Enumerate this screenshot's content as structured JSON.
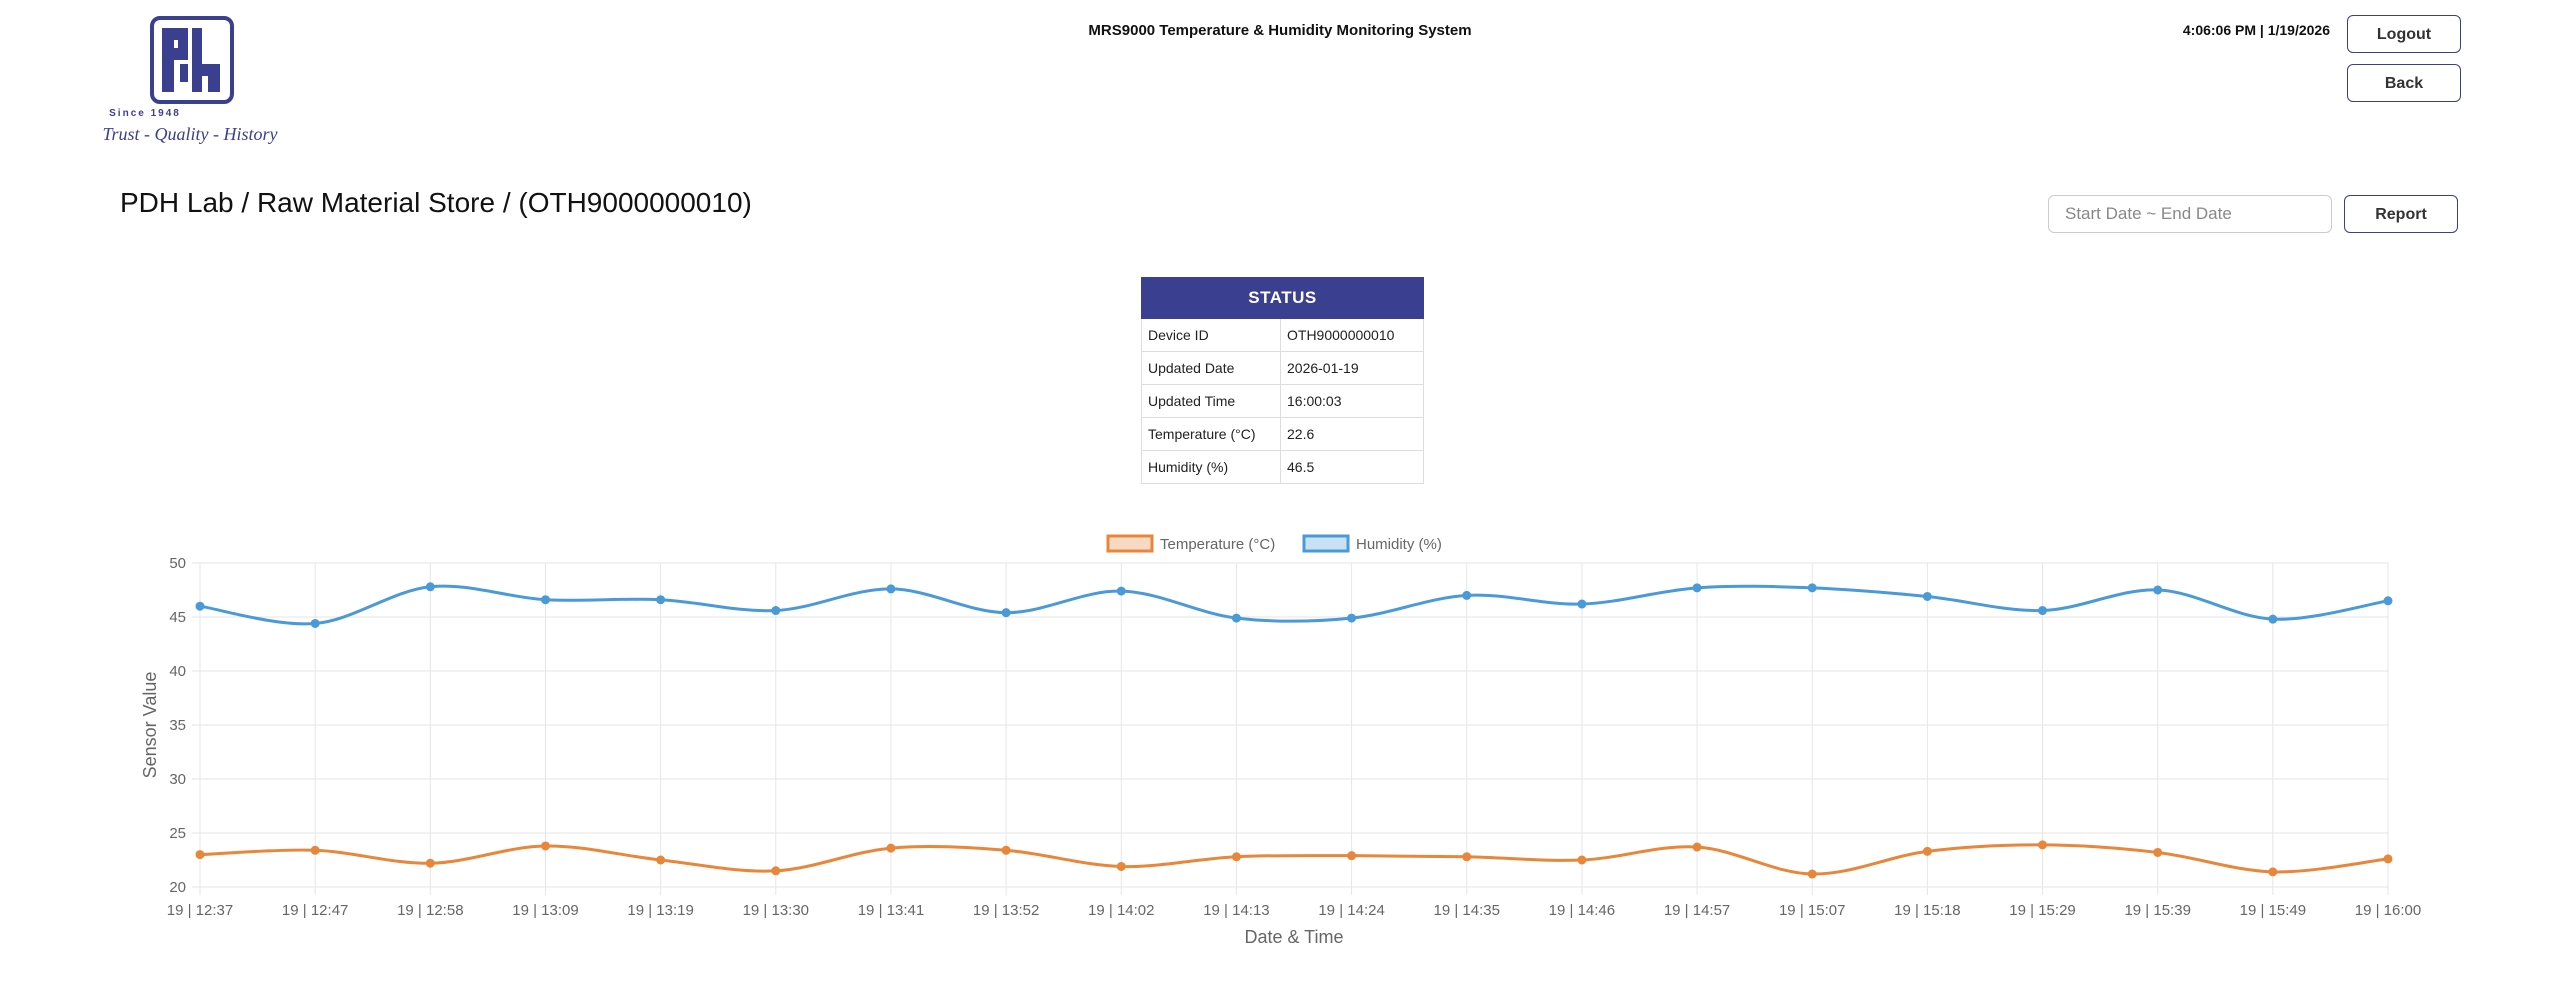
{
  "header": {
    "logo": {
      "text": "PDH",
      "since": "Since 1948",
      "slogan": "Trust - Quality - History"
    },
    "title": "MRS9000 Temperature & Humidity Monitoring System",
    "clock": "4:06:06 PM | 1/19/2026",
    "logout_label": "Logout",
    "back_label": "Back"
  },
  "breadcrumb": "PDH Lab / Raw Material Store / (OTH9000000010)",
  "filters": {
    "date_range_placeholder": "Start Date ~ End Date",
    "report_label": "Report"
  },
  "status": {
    "heading": "STATUS",
    "rows": [
      {
        "label": "Device ID",
        "value": "OTH9000000010"
      },
      {
        "label": "Updated Date",
        "value": "2026-01-19"
      },
      {
        "label": "Updated Time",
        "value": "16:00:03"
      },
      {
        "label": "Temperature (°C)",
        "value": "22.6"
      },
      {
        "label": "Humidity (%)",
        "value": "46.5"
      }
    ]
  },
  "colors": {
    "brand": "#3a3f8f",
    "temperature": "#e8863a",
    "humidity": "#4a9ad8"
  },
  "chart_data": {
    "type": "line",
    "xlabel": "Date & Time",
    "ylabel": "Sensor Value",
    "ylim": [
      20,
      50
    ],
    "yticks": [
      20,
      25,
      30,
      35,
      40,
      45,
      50
    ],
    "grid": true,
    "legend_position": "top-center",
    "categories": [
      "19 | 12:37",
      "19 | 12:47",
      "19 | 12:58",
      "19 | 13:09",
      "19 | 13:19",
      "19 | 13:30",
      "19 | 13:41",
      "19 | 13:52",
      "19 | 14:02",
      "19 | 14:13",
      "19 | 14:24",
      "19 | 14:35",
      "19 | 14:46",
      "19 | 14:57",
      "19 | 15:07",
      "19 | 15:18",
      "19 | 15:29",
      "19 | 15:39",
      "19 | 15:49",
      "19 | 16:00"
    ],
    "series": [
      {
        "name": "Temperature (°C)",
        "values": [
          23.0,
          23.4,
          22.2,
          23.8,
          22.5,
          21.5,
          23.6,
          23.4,
          21.9,
          22.8,
          22.9,
          22.8,
          22.5,
          23.7,
          21.2,
          23.3,
          23.9,
          23.2,
          21.4,
          22.6
        ]
      },
      {
        "name": "Humidity (%)",
        "values": [
          46.0,
          44.4,
          47.8,
          46.6,
          46.6,
          45.6,
          47.6,
          45.4,
          47.4,
          44.9,
          44.9,
          47.0,
          46.2,
          47.7,
          47.7,
          46.9,
          45.6,
          47.5,
          44.8,
          46.5
        ]
      }
    ]
  }
}
